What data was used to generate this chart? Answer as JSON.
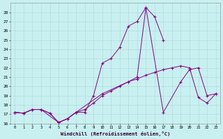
{
  "xlabel": "Windchill (Refroidissement éolien,°C)",
  "xlim_min": -0.5,
  "xlim_max": 23.5,
  "ylim_min": 16,
  "ylim_max": 29,
  "background_color": "#c8f0f0",
  "grid_color": "#a8d8d8",
  "line_color": "#880088",
  "line1": {
    "x": [
      0,
      1,
      2,
      3,
      4,
      5,
      6,
      7,
      8,
      9,
      10,
      11,
      12,
      13,
      14,
      15,
      16,
      17
    ],
    "y": [
      17.2,
      17.1,
      17.5,
      17.5,
      17.1,
      16.1,
      16.5,
      17.2,
      17.2,
      19.0,
      22.5,
      23.0,
      24.2,
      26.5,
      27.0,
      28.5,
      27.5,
      25.0
    ]
  },
  "line2": {
    "x": [
      0,
      1,
      2,
      3,
      5,
      6,
      7,
      10,
      13,
      14,
      15,
      17,
      19,
      20,
      21,
      22,
      23
    ],
    "y": [
      17.2,
      17.1,
      17.5,
      17.5,
      16.1,
      16.5,
      17.2,
      19.2,
      20.5,
      21.0,
      28.5,
      17.2,
      20.5,
      21.8,
      22.0,
      19.0,
      19.2
    ]
  },
  "line3": {
    "x": [
      0,
      1,
      2,
      3,
      4,
      5,
      6,
      7,
      8,
      9,
      10,
      11,
      12,
      13,
      14,
      15,
      16,
      17,
      18,
      19,
      20,
      21,
      22,
      23
    ],
    "y": [
      17.2,
      17.1,
      17.5,
      17.5,
      17.1,
      16.1,
      16.5,
      17.2,
      17.5,
      18.2,
      19.0,
      19.5,
      20.0,
      20.5,
      20.8,
      21.2,
      21.5,
      21.8,
      22.0,
      22.2,
      22.0,
      18.8,
      18.2,
      19.2
    ]
  }
}
